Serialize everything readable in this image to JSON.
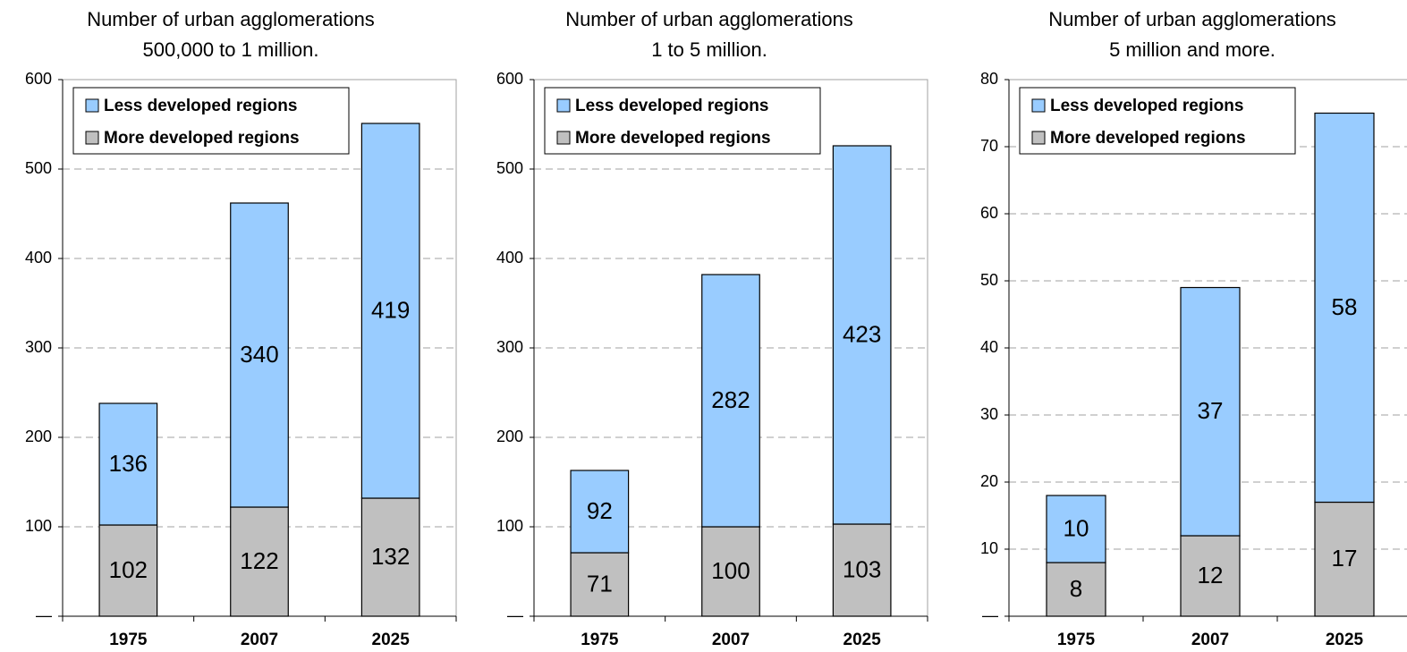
{
  "chart_data": [
    {
      "type": "stacked_bar",
      "title": [
        "Number of urban agglomerations",
        "500,000 to 1 million."
      ],
      "categories": [
        "1975",
        "2007",
        "2025"
      ],
      "series": [
        {
          "name": "More developed regions",
          "color": "#c0c0c0",
          "values": [
            102,
            122,
            132
          ]
        },
        {
          "name": "Less developed regions",
          "color": "#99ccff",
          "values": [
            136,
            340,
            419
          ]
        }
      ],
      "ylim": [
        0,
        600
      ],
      "yticks": [
        {
          "value": 0,
          "label": "—"
        },
        100,
        200,
        300,
        400,
        500,
        600
      ],
      "grid": true,
      "legend": "top-left"
    },
    {
      "type": "stacked_bar",
      "title": [
        "Number of urban agglomerations",
        "1 to 5 million."
      ],
      "categories": [
        "1975",
        "2007",
        "2025"
      ],
      "series": [
        {
          "name": "More developed regions",
          "color": "#c0c0c0",
          "values": [
            71,
            100,
            103
          ]
        },
        {
          "name": "Less developed regions",
          "color": "#99ccff",
          "values": [
            92,
            282,
            423
          ]
        }
      ],
      "ylim": [
        0,
        600
      ],
      "yticks": [
        {
          "value": 0,
          "label": "—"
        },
        100,
        200,
        300,
        400,
        500,
        600
      ],
      "grid": true,
      "legend": "top-left"
    },
    {
      "type": "stacked_bar",
      "title": [
        "Number of urban agglomerations",
        "5 million and more."
      ],
      "categories": [
        "1975",
        "2007",
        "2025"
      ],
      "series": [
        {
          "name": "More developed regions",
          "color": "#c0c0c0",
          "values": [
            8,
            12,
            17
          ]
        },
        {
          "name": "Less developed regions",
          "color": "#99ccff",
          "values": [
            10,
            37,
            58
          ]
        }
      ],
      "ylim": [
        0,
        80
      ],
      "yticks": [
        {
          "value": 0,
          "label": "—"
        },
        10,
        20,
        30,
        40,
        50,
        60,
        70,
        80
      ],
      "grid": true,
      "legend": "top-left"
    }
  ]
}
